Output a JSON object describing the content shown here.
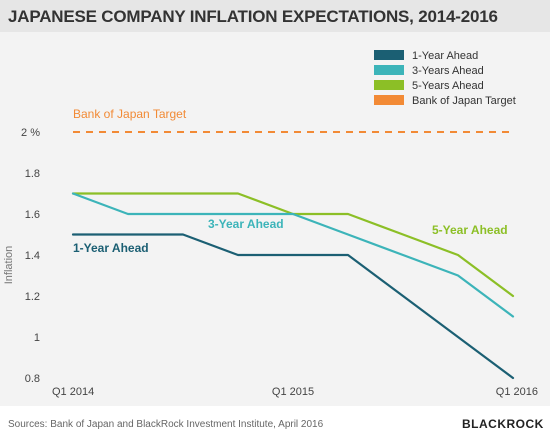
{
  "header": {
    "title": "JAPANESE COMPANY INFLATION EXPECTATIONS, 2014-2016"
  },
  "footer": {
    "source": "Sources: Bank of Japan and BlackRock Investment Institute, April 2016",
    "brand": "BLACKROCK"
  },
  "chart_data": {
    "type": "line",
    "title": "JAPANESE COMPANY INFLATION EXPECTATIONS, 2014-2016",
    "ylabel": "Inflation",
    "xlabel": "",
    "x": [
      "Q1 2014",
      "Q2 2014",
      "Q3 2014",
      "Q4 2014",
      "Q1 2015",
      "Q2 2015",
      "Q3 2015",
      "Q4 2015",
      "Q1 2016"
    ],
    "x_tick_labels": [
      "Q1 2014",
      "Q1 2015",
      "Q1 2016"
    ],
    "x_tick_indices": [
      0,
      4,
      8
    ],
    "ylim": [
      0.8,
      2.0
    ],
    "y_ticks": [
      {
        "value": 0.8,
        "label": "0.8"
      },
      {
        "value": 1.0,
        "label": "1"
      },
      {
        "value": 1.2,
        "label": "1.2"
      },
      {
        "value": 1.4,
        "label": "1.4"
      },
      {
        "value": 1.6,
        "label": "1.6"
      },
      {
        "value": 1.8,
        "label": "1.8"
      },
      {
        "value": 2.0,
        "label": "2 %"
      }
    ],
    "grid": false,
    "legend_position": "top-right",
    "series": [
      {
        "name": "1-Year Ahead",
        "color": "#1b5f73",
        "values": [
          1.5,
          1.5,
          1.5,
          1.4,
          1.4,
          1.4,
          1.2,
          1.0,
          0.8
        ]
      },
      {
        "name": "3-Years Ahead",
        "color": "#3cb4b9",
        "values": [
          1.7,
          1.6,
          1.6,
          1.6,
          1.6,
          1.5,
          1.4,
          1.3,
          1.1
        ]
      },
      {
        "name": "5-Years Ahead",
        "color": "#8cbf26",
        "values": [
          1.7,
          1.7,
          1.7,
          1.7,
          1.6,
          1.6,
          1.5,
          1.4,
          1.2
        ]
      }
    ],
    "target": {
      "name": "Bank of Japan Target",
      "value": 2.0,
      "color": "#f28a35",
      "label": "Bank of Japan Target"
    },
    "annotations": [
      {
        "text": "1-Year Ahead",
        "series": 0
      },
      {
        "text": "3-Year Ahead",
        "series": 1
      },
      {
        "text": "5-Year Ahead",
        "series": 2
      }
    ]
  }
}
